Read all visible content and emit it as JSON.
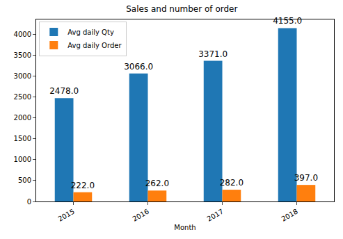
{
  "chart_data": {
    "type": "bar",
    "title": "Sales and number of order",
    "x_label": "Month",
    "categories": [
      "2015",
      "2016",
      "2017",
      "2018"
    ],
    "series": [
      {
        "name": "Avg daily Qty",
        "color": "#1f77b4",
        "values": [
          2478,
          3066,
          3371,
          4155
        ],
        "value_labels": [
          "2478.0",
          "3066.0",
          "3371.0",
          "4155.0"
        ]
      },
      {
        "name": "Avg daily Order",
        "color": "#ff7f0e",
        "values": [
          222,
          262,
          282,
          397
        ],
        "value_labels": [
          "222.0",
          "262.0",
          "282.0",
          "397.0"
        ]
      }
    ],
    "ylim": [
      0,
      4362.75
    ],
    "yticks": [
      0,
      500,
      1000,
      1500,
      2000,
      2500,
      3000,
      3500,
      4000
    ],
    "grid": false,
    "legend": "upper left",
    "data_labels": true
  }
}
